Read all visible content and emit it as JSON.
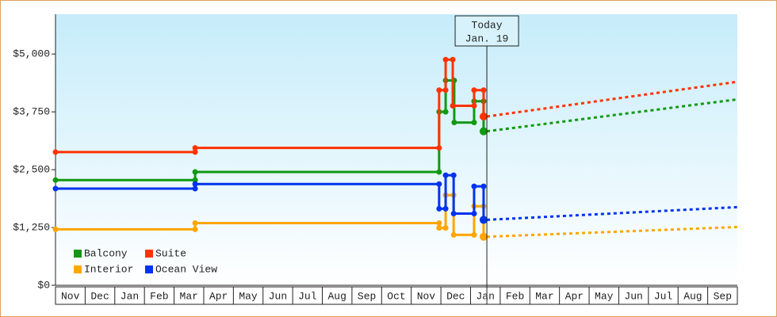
{
  "chart_data": {
    "type": "line",
    "categories": [
      "Nov",
      "Dec",
      "Jan",
      "Feb",
      "Mar",
      "Apr",
      "May",
      "Jun",
      "Jul",
      "Aug",
      "Sep",
      "Oct",
      "Nov",
      "Dec",
      "Jan",
      "Feb",
      "Mar",
      "Apr",
      "May",
      "Jun",
      "Jul",
      "Aug",
      "Sep"
    ],
    "xlim": [
      0,
      23
    ],
    "ylim": [
      0,
      5860
    ],
    "yticks": [
      {
        "value": 0,
        "label": "$0"
      },
      {
        "value": 1250,
        "label": "$1,250"
      },
      {
        "value": 2500,
        "label": "$2,500"
      },
      {
        "value": 3750,
        "label": "$3,750"
      },
      {
        "value": 5000,
        "label": "$5,000"
      }
    ],
    "annotation": {
      "x": 14.55,
      "text": [
        "Today",
        "Jan. 19"
      ]
    },
    "series": [
      {
        "name": "Balcony",
        "color": "#119911",
        "x": [
          0,
          4.71,
          4.71,
          12.94,
          12.94,
          13.16,
          13.16,
          13.45,
          13.45,
          14.12,
          14.12,
          14.44,
          14.44
        ],
        "values": [
          2275,
          2275,
          2450,
          2450,
          3750,
          3750,
          4430,
          4430,
          3520,
          3520,
          3980,
          3980,
          3330
        ],
        "forecast": {
          "x": [
            14.55,
            23
          ],
          "values": [
            3330,
            4020
          ]
        }
      },
      {
        "name": "Suite",
        "color": "#ff3300",
        "x": [
          0,
          4.71,
          4.71,
          12.94,
          12.94,
          13.16,
          13.16,
          13.4,
          13.4,
          14.12,
          14.12,
          14.44,
          14.44
        ],
        "values": [
          2880,
          2880,
          2970,
          2970,
          4220,
          4220,
          4880,
          4880,
          3880,
          3880,
          4220,
          4220,
          3650
        ],
        "forecast": {
          "x": [
            14.55,
            23
          ],
          "values": [
            3650,
            4400
          ]
        }
      },
      {
        "name": "Interior",
        "color": "#ffa500",
        "x": [
          0,
          4.71,
          4.71,
          12.94,
          12.94,
          13.16,
          13.16,
          13.43,
          13.43,
          14.12,
          14.12,
          14.44,
          14.44
        ],
        "values": [
          1210,
          1210,
          1345,
          1345,
          1240,
          1240,
          1950,
          1950,
          1090,
          1090,
          1710,
          1710,
          1050
        ],
        "forecast": {
          "x": [
            14.55,
            23
          ],
          "values": [
            1050,
            1260
          ]
        }
      },
      {
        "name": "Ocean View",
        "color": "#0033ee",
        "x": [
          0,
          4.71,
          4.71,
          12.94,
          12.94,
          13.16,
          13.16,
          13.43,
          13.43,
          14.12,
          14.12,
          14.44,
          14.44
        ],
        "values": [
          2090,
          2090,
          2190,
          2190,
          1655,
          1655,
          2380,
          2380,
          1550,
          1550,
          2140,
          2140,
          1415
        ],
        "forecast": {
          "x": [
            14.55,
            23
          ],
          "values": [
            1415,
            1690
          ]
        }
      }
    ]
  }
}
